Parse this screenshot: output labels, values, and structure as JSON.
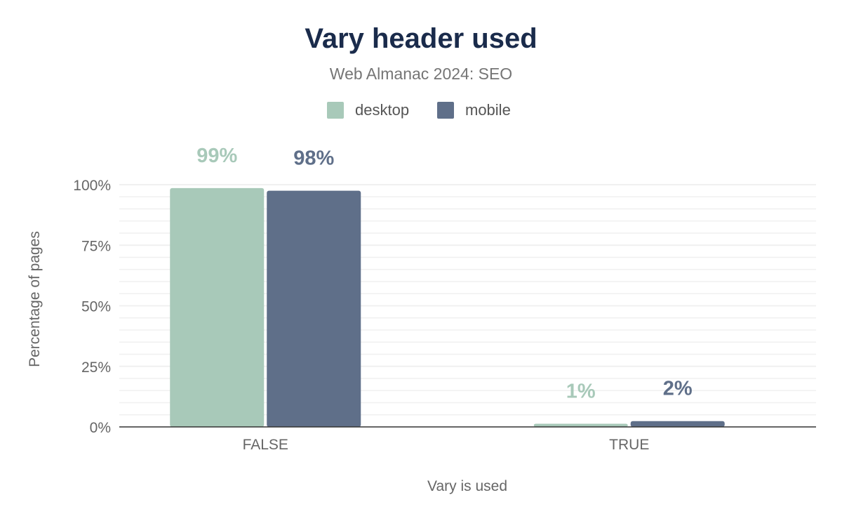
{
  "chart_data": {
    "type": "bar",
    "title": "Vary header used",
    "subtitle": "Web Almanac 2024: SEO",
    "xlabel": "Vary is used",
    "ylabel": "Percentage of pages",
    "categories": [
      "FALSE",
      "TRUE"
    ],
    "series": [
      {
        "name": "desktop",
        "color": "#a8c9b9",
        "values": [
          98.6,
          1.3
        ],
        "labels": [
          "99%",
          "1%"
        ]
      },
      {
        "name": "mobile",
        "color": "#5f6f89",
        "values": [
          97.5,
          2.4
        ],
        "labels": [
          "98%",
          "2%"
        ]
      }
    ],
    "ylim": [
      0,
      100
    ],
    "yticks": [
      0,
      25,
      50,
      75,
      100
    ],
    "ytick_labels": [
      "0%",
      "25%",
      "50%",
      "75%",
      "100%"
    ],
    "grid": true,
    "legend": "top-center"
  }
}
